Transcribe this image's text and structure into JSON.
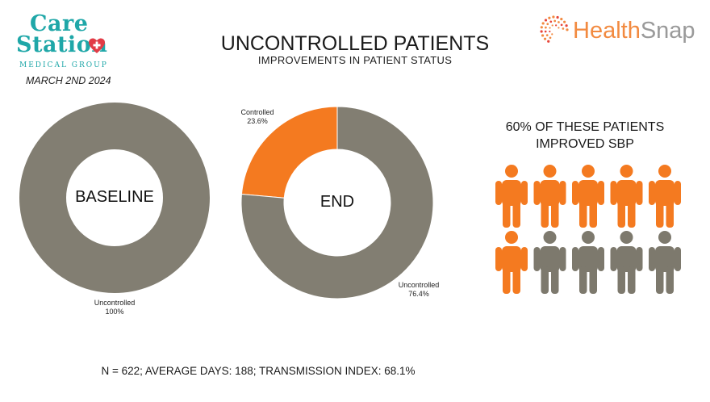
{
  "logo": {
    "line1": "Care",
    "line2": "Station",
    "line3": "Medical Group"
  },
  "date": "MARCH 2ND 2024",
  "title": "UNCONTROLLED PATIENTS",
  "subtitle": "IMPROVEMENTS IN PATIENT STATUS",
  "brand": {
    "part1": "Health",
    "part2": "Snap"
  },
  "colors": {
    "uncontrolled": "#827e72",
    "controlled": "#f47a20",
    "person_gray": "#7d796d",
    "teal": "#1fa7a8"
  },
  "stat": {
    "line1": "60% OF THESE PATIENTS",
    "line2": "IMPROVED SBP",
    "improved_people": 6,
    "total_people": 10
  },
  "footer": "N = 622; AVERAGE DAYS: 188; TRANSMISSION INDEX: 68.1%",
  "chart_data": [
    {
      "type": "pie",
      "center_label": "BASELINE",
      "slices": [
        {
          "label": "Uncontrolled",
          "value_label": "100%",
          "value": 100
        }
      ]
    },
    {
      "type": "pie",
      "center_label": "END",
      "slices": [
        {
          "label": "Controlled",
          "value_label": "23.6%",
          "value": 23.6
        },
        {
          "label": "Uncontrolled",
          "value_label": "76.4%",
          "value": 76.4
        }
      ]
    }
  ]
}
